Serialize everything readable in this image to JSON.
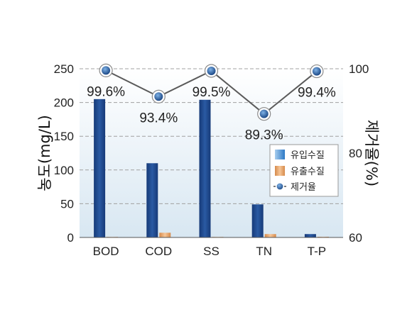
{
  "chart_data": {
    "type": "bar",
    "categories": [
      "BOD",
      "COD",
      "SS",
      "TN",
      "T-P"
    ],
    "series": [
      {
        "name": "유입수질",
        "type": "bar",
        "axis": "left",
        "values": [
          205,
          110,
          204,
          49,
          5
        ],
        "color": "#1f4a8f"
      },
      {
        "name": "유출수질",
        "type": "bar",
        "axis": "left",
        "values": [
          0.8,
          7,
          0.8,
          5,
          1
        ],
        "color": "#e7a66c"
      },
      {
        "name": "제거율",
        "type": "line",
        "axis": "right",
        "values": [
          99.6,
          93.4,
          99.5,
          89.3,
          99.4
        ],
        "color": "#1f5ea8"
      }
    ],
    "point_labels": [
      "99.6%",
      "93.4%",
      "99.5%",
      "89.3%",
      "99.4%"
    ],
    "ylabel": "농도(mg/L)",
    "ylabel_right": "제거율(%)",
    "ylim": [
      0,
      250
    ],
    "yticks": [
      "0",
      "50",
      "100",
      "150",
      "200",
      "250"
    ],
    "ylim_right": [
      60,
      100
    ],
    "yticks_right": [
      "60",
      "80",
      "100"
    ],
    "legend": [
      "유입수질",
      "유출수질",
      "제거율"
    ],
    "legend_position": "right",
    "grid": true
  }
}
